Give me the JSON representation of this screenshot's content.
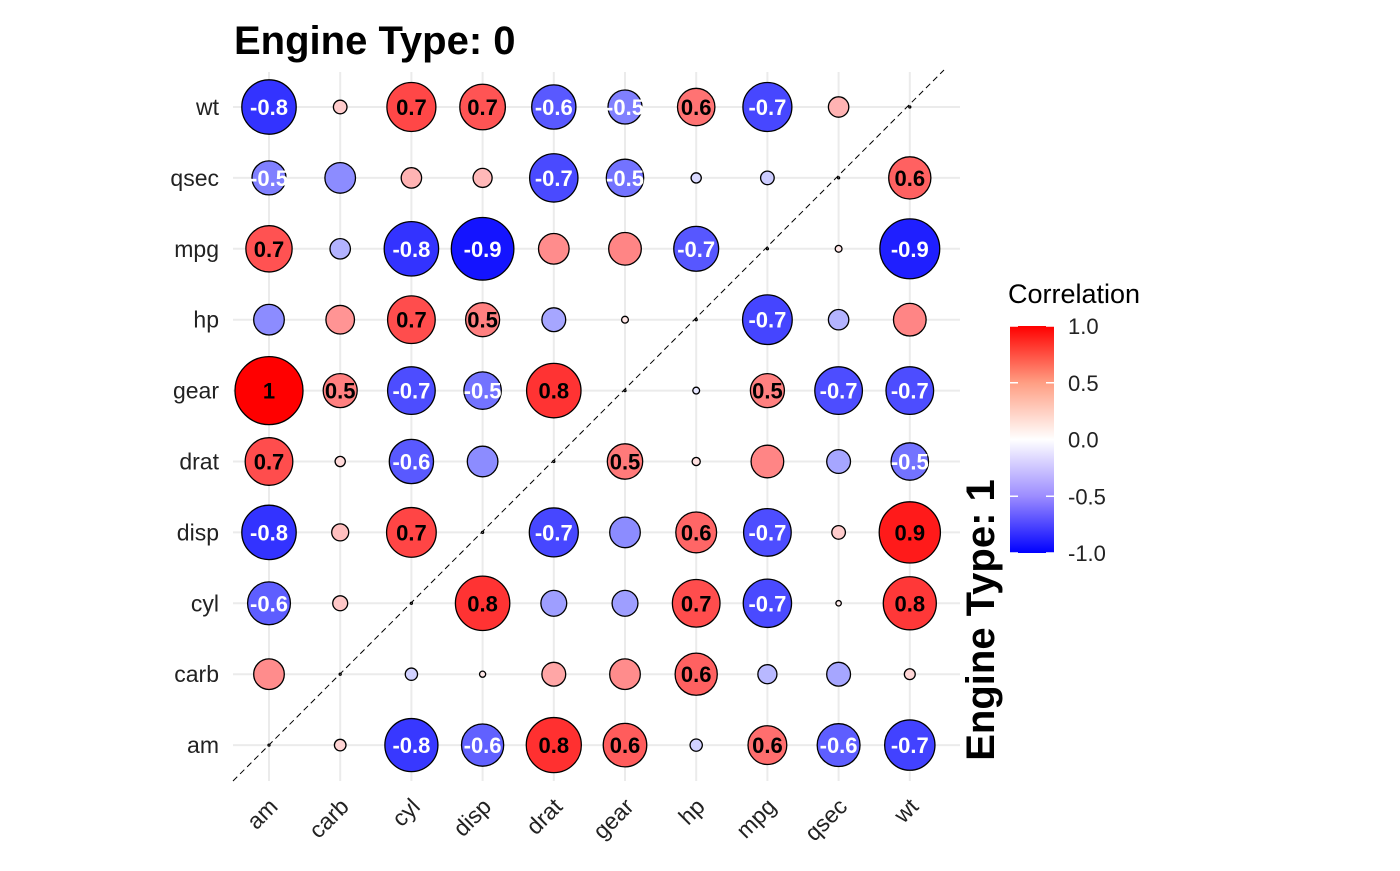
{
  "chart_data": {
    "type": "heatmap",
    "subtype": "correlation-bubble-matrix",
    "title_top": "Engine Type: 0",
    "title_right": "Engine Type: 1",
    "variables": [
      "am",
      "carb",
      "cyl",
      "disp",
      "drat",
      "gear",
      "hp",
      "mpg",
      "qsec",
      "wt"
    ],
    "x_categories": [
      "am",
      "carb",
      "cyl",
      "disp",
      "drat",
      "gear",
      "hp",
      "mpg",
      "qsec",
      "wt"
    ],
    "y_categories": [
      "am",
      "carb",
      "cyl",
      "disp",
      "drat",
      "gear",
      "hp",
      "mpg",
      "qsec",
      "wt"
    ],
    "label_threshold": 0.5,
    "values": [
      [
        0.0,
        0.17,
        -0.78,
        -0.62,
        0.81,
        0.64,
        -0.18,
        0.57,
        -0.63,
        -0.74
      ],
      [
        0.45,
        0.0,
        -0.18,
        0.09,
        0.35,
        0.45,
        0.62,
        -0.28,
        -0.35,
        0.16
      ],
      [
        -0.63,
        0.22,
        0.0,
        0.8,
        -0.38,
        -0.38,
        0.7,
        -0.71,
        0.08,
        0.78
      ],
      [
        -0.8,
        0.25,
        0.73,
        0.0,
        -0.72,
        -0.45,
        0.6,
        -0.7,
        0.2,
        0.9
      ],
      [
        0.7,
        0.15,
        -0.65,
        -0.45,
        0.0,
        0.52,
        0.12,
        0.48,
        -0.35,
        -0.55
      ],
      [
        1.0,
        0.5,
        -0.7,
        -0.55,
        0.8,
        0.0,
        -0.1,
        0.5,
        -0.7,
        -0.7
      ],
      [
        -0.45,
        0.42,
        0.7,
        0.5,
        -0.35,
        0.1,
        0.0,
        -0.73,
        -0.3,
        0.48
      ],
      [
        0.68,
        -0.3,
        -0.8,
        -0.92,
        0.45,
        0.48,
        -0.66,
        0.0,
        0.1,
        -0.88
      ],
      [
        -0.5,
        -0.45,
        0.3,
        0.28,
        -0.71,
        -0.55,
        -0.15,
        -0.2,
        0.0,
        0.62
      ],
      [
        -0.8,
        0.2,
        0.72,
        0.67,
        -0.65,
        -0.5,
        0.55,
        -0.72,
        0.3,
        0.0
      ]
    ],
    "legend": {
      "title": "Correlation",
      "position": "right",
      "ticks": [
        "1.0",
        "0.5",
        "0.0",
        "-0.5",
        "-1.0"
      ],
      "colors": {
        "low": "#0000ff",
        "mid": "#ffffff",
        "high": "#ff0000"
      }
    },
    "grid": true
  }
}
